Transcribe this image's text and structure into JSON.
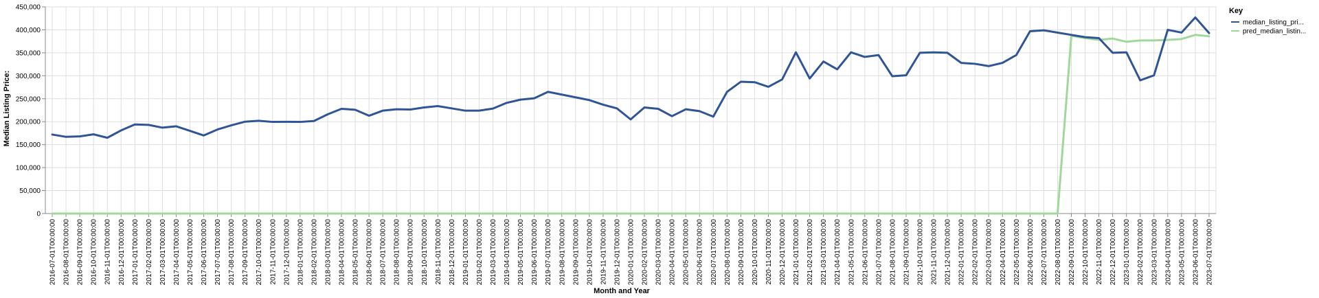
{
  "chart_data": {
    "type": "line",
    "xlabel": "Month and Year",
    "ylabel": "Median Listing Price:",
    "ylim": [
      0,
      450000
    ],
    "yticks": [
      0,
      50000,
      100000,
      150000,
      200000,
      250000,
      300000,
      350000,
      400000,
      450000
    ],
    "ytick_labels": [
      "0",
      "50,000",
      "100,000",
      "150,000",
      "200,000",
      "250,000",
      "300,000",
      "350,000",
      "400,000",
      "450,000"
    ],
    "grid": true,
    "legend": {
      "title": "Key",
      "position": "top-right"
    },
    "x": [
      "2016-07-01T00:00:00",
      "2016-08-01T00:00:00",
      "2016-09-01T00:00:00",
      "2016-10-01T00:00:00",
      "2016-11-01T00:00:00",
      "2016-12-01T00:00:00",
      "2017-01-01T00:00:00",
      "2017-02-01T00:00:00",
      "2017-03-01T00:00:00",
      "2017-04-01T00:00:00",
      "2017-05-01T00:00:00",
      "2017-06-01T00:00:00",
      "2017-07-01T00:00:00",
      "2017-08-01T00:00:00",
      "2017-09-01T00:00:00",
      "2017-10-01T00:00:00",
      "2017-11-01T00:00:00",
      "2017-12-01T00:00:00",
      "2018-01-01T00:00:00",
      "2018-02-01T00:00:00",
      "2018-03-01T00:00:00",
      "2018-04-01T00:00:00",
      "2018-05-01T00:00:00",
      "2018-06-01T00:00:00",
      "2018-07-01T00:00:00",
      "2018-08-01T00:00:00",
      "2018-09-01T00:00:00",
      "2018-10-01T00:00:00",
      "2018-11-01T00:00:00",
      "2018-12-01T00:00:00",
      "2019-01-01T00:00:00",
      "2019-02-01T00:00:00",
      "2019-03-01T00:00:00",
      "2019-04-01T00:00:00",
      "2019-05-01T00:00:00",
      "2019-06-01T00:00:00",
      "2019-07-01T00:00:00",
      "2019-08-01T00:00:00",
      "2019-09-01T00:00:00",
      "2019-10-01T00:00:00",
      "2019-11-01T00:00:00",
      "2019-12-01T00:00:00",
      "2020-01-01T00:00:00",
      "2020-02-01T00:00:00",
      "2020-03-01T00:00:00",
      "2020-04-01T00:00:00",
      "2020-05-01T00:00:00",
      "2020-06-01T00:00:00",
      "2020-07-01T00:00:00",
      "2020-08-01T00:00:00",
      "2020-09-01T00:00:00",
      "2020-10-01T00:00:00",
      "2020-11-01T00:00:00",
      "2020-12-01T00:00:00",
      "2021-01-01T00:00:00",
      "2021-02-01T00:00:00",
      "2021-03-01T00:00:00",
      "2021-04-01T00:00:00",
      "2021-05-01T00:00:00",
      "2021-06-01T00:00:00",
      "2021-07-01T00:00:00",
      "2021-08-01T00:00:00",
      "2021-09-01T00:00:00",
      "2021-10-01T00:00:00",
      "2021-11-01T00:00:00",
      "2021-12-01T00:00:00",
      "2022-01-01T00:00:00",
      "2022-02-01T00:00:00",
      "2022-03-01T00:00:00",
      "2022-04-01T00:00:00",
      "2022-05-01T00:00:00",
      "2022-06-01T00:00:00",
      "2022-07-01T00:00:00",
      "2022-08-01T00:00:00",
      "2022-09-01T00:00:00",
      "2022-10-01T00:00:00",
      "2022-11-01T00:00:00",
      "2022-12-01T00:00:00",
      "2023-01-01T00:00:00",
      "2023-02-01T00:00:00",
      "2023-03-01T00:00:00",
      "2023-04-01T00:00:00",
      "2023-05-01T00:00:00",
      "2023-06-01T00:00:00",
      "2023-07-01T00:00:00"
    ],
    "series": [
      {
        "name": "median_listing_pri...",
        "color": "#2f5597",
        "values": [
          172000,
          167000,
          168000,
          172500,
          165000,
          181000,
          194000,
          193000,
          187000,
          190000,
          180000,
          170000,
          183000,
          192000,
          200000,
          202000,
          199500,
          199800,
          199500,
          201500,
          216000,
          228000,
          226000,
          213000,
          224000,
          227000,
          226500,
          231000,
          234000,
          229000,
          224000,
          224000,
          228500,
          241000,
          248000,
          251000,
          265000,
          259000,
          253000,
          247000,
          237000,
          229000,
          205000,
          231000,
          228000,
          212000,
          227000,
          223000,
          211000,
          265000,
          287000,
          286000,
          276000,
          292000,
          351000,
          294000,
          331000,
          314000,
          351000,
          341000,
          345000,
          299000,
          301000,
          350000,
          351000,
          350000,
          328000,
          326000,
          321000,
          328000,
          345000,
          397000,
          399000,
          394000,
          389000,
          384000,
          382000,
          350000,
          351000,
          290000,
          301000,
          400000,
          394000,
          427000,
          393000
        ]
      },
      {
        "name": "pred_median_listin...",
        "color": "#9fd89a",
        "values": [
          0,
          0,
          0,
          0,
          0,
          0,
          0,
          0,
          0,
          0,
          0,
          0,
          0,
          0,
          0,
          0,
          0,
          0,
          0,
          0,
          0,
          0,
          0,
          0,
          0,
          0,
          0,
          0,
          0,
          0,
          0,
          0,
          0,
          0,
          0,
          0,
          0,
          0,
          0,
          0,
          0,
          0,
          0,
          0,
          0,
          0,
          0,
          0,
          0,
          0,
          0,
          0,
          0,
          0,
          0,
          0,
          0,
          0,
          0,
          0,
          0,
          0,
          0,
          0,
          0,
          0,
          0,
          0,
          0,
          0,
          0,
          0,
          0,
          0,
          387000,
          382000,
          378000,
          381000,
          374000,
          377000,
          377000,
          378000,
          380000,
          389000,
          386000
        ]
      }
    ]
  }
}
